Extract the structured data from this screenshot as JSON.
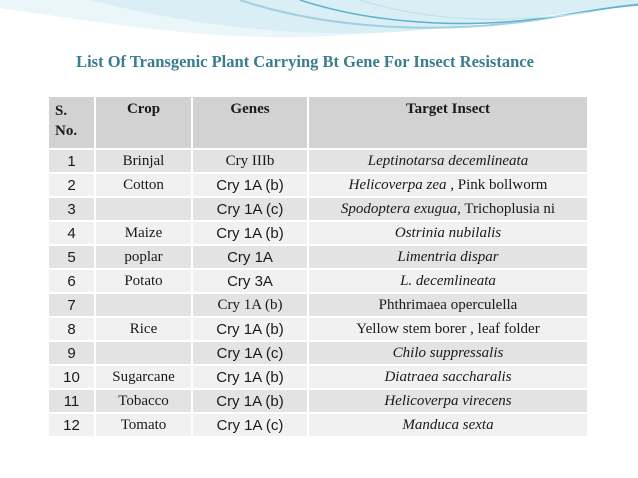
{
  "slide": {
    "title": "List Of Transgenic Plant Carrying Bt Gene For Insect Resistance",
    "headers": {
      "sno": "S. No.",
      "crop": "Crop",
      "genes": "Genes",
      "target": "Target Insect"
    },
    "rows": [
      {
        "sno": "1",
        "crop": "Brinjal",
        "genes": "Cry IIIb",
        "target": "Leptinotarsa decemlineata"
      },
      {
        "sno": "2",
        "crop": "Cotton",
        "genes": "Cry 1A (b)",
        "target_italic": "Helicoverpa zea",
        "target_rest": " , Pink bollworm"
      },
      {
        "sno": "3",
        "crop": "",
        "genes": "Cry 1A (c)",
        "target_italic": "Spodoptera exugua,",
        "target_rest": " Trichoplusia ni"
      },
      {
        "sno": "4",
        "crop": "Maize",
        "genes": "Cry 1A (b)",
        "target": "Ostrinia nubilalis"
      },
      {
        "sno": "5",
        "crop": "poplar",
        "genes": "Cry 1A",
        "target": "Limentria dispar"
      },
      {
        "sno": "6",
        "crop": "Potato",
        "genes": "Cry 3A",
        "target": "L. decemlineata"
      },
      {
        "sno": "7",
        "crop": "",
        "genes": "Cry 1A (b)",
        "target": "Phthrimaea operculella"
      },
      {
        "sno": "8",
        "crop": "Rice",
        "genes": "Cry 1A (b)",
        "target": "Yellow stem borer , leaf folder"
      },
      {
        "sno": "9",
        "crop": "",
        "genes": "Cry 1A (c)",
        "target": "Chilo suppressalis"
      },
      {
        "sno": "10",
        "crop": "Sugarcane",
        "genes": "Cry 1A (b)",
        "target": "Diatraea saccharalis"
      },
      {
        "sno": "11",
        "crop": "Tobacco",
        "genes": "Cry 1A (b)",
        "target": "Helicoverpa virecens"
      },
      {
        "sno": "12",
        "crop": "Tomato",
        "genes": "Cry 1A (c)",
        "target": "Manduca sexta"
      }
    ]
  },
  "colors": {
    "title": "#3a7d8c",
    "header_bg": "#d2d2d2",
    "row_odd": "#e3e3e3",
    "row_even": "#f1f1f1",
    "wave_light": "#d9eef5",
    "wave_mid": "#9fd0e0",
    "wave_dark": "#5fb2cc"
  }
}
